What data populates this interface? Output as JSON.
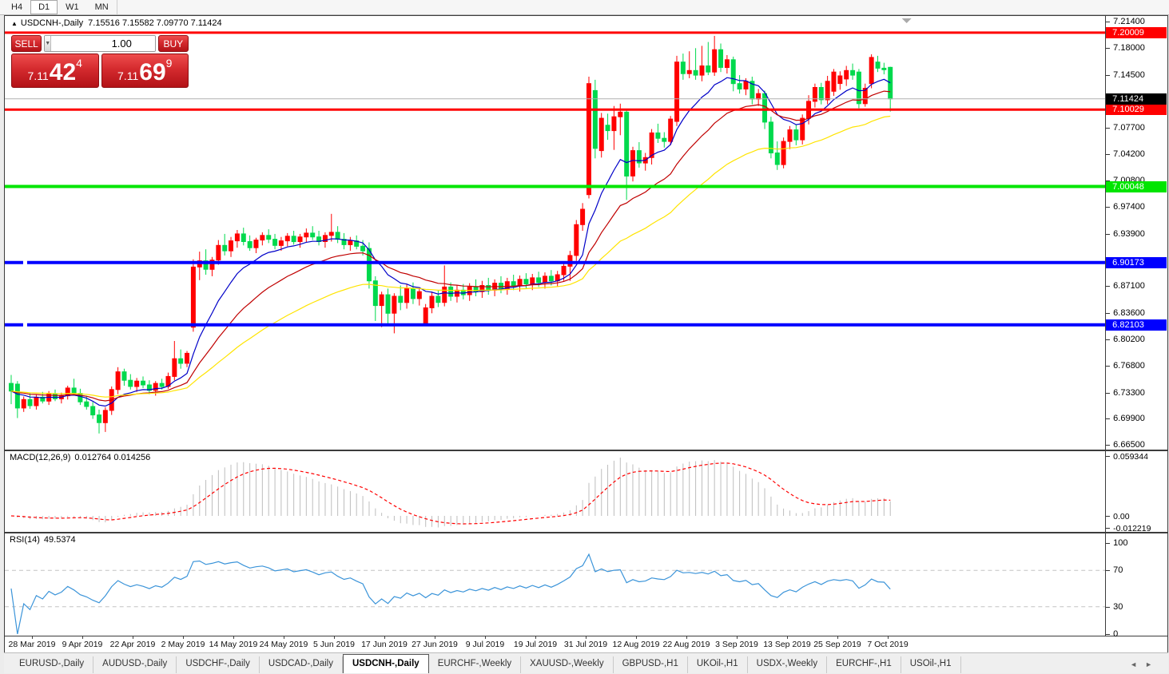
{
  "toolbar": {
    "timeframes": [
      "H4",
      "D1",
      "W1",
      "MN"
    ],
    "active": "D1"
  },
  "chart": {
    "title_marker": "▲",
    "symbol_label": "USDCNH-,Daily",
    "ohlc_text": "7.15516 7.15582 7.09770 7.11424"
  },
  "trade_panel": {
    "sell_label": "SELL",
    "buy_label": "BUY",
    "volume": "1.00",
    "spin_down_icon": "▼",
    "spin_up_icon": "▲",
    "sell_price": {
      "prefix": "7.11",
      "big": "42",
      "sup": "4"
    },
    "buy_price": {
      "prefix": "7.11",
      "big": "69",
      "sup": "9"
    }
  },
  "chart_data": {
    "type": "candlestick",
    "symbol": "USDCNH",
    "timeframe": "Daily",
    "last_ohlc": {
      "open": 7.15516,
      "high": 7.15582,
      "low": 7.0977,
      "close": 7.11424
    },
    "colors": {
      "bull": "#FF0000",
      "bear": "#00D94D",
      "macd_hist": "#BDBDBD",
      "macd_signal": "#FF0000",
      "rsi_line": "#3B94D9",
      "ma_fast": "#0000C8",
      "ma_mid": "#C00000",
      "ma_slow": "#FFE400",
      "current_price_line": "#B0B0B0"
    },
    "x_labels": [
      "28 Mar 2019",
      "9 Apr 2019",
      "22 Apr 2019",
      "2 May 2019",
      "14 May 2019",
      "24 May 2019",
      "5 Jun 2019",
      "17 Jun 2019",
      "27 Jun 2019",
      "9 Jul 2019",
      "19 Jul 2019",
      "31 Jul 2019",
      "12 Aug 2019",
      "22 Aug 2019",
      "3 Sep 2019",
      "13 Sep 2019",
      "25 Sep 2019",
      "7 Oct 2019"
    ],
    "y_ticks": [
      "7.21400",
      "7.18000",
      "7.14500",
      "7.11000",
      "7.07700",
      "7.04200",
      "7.00800",
      "6.97400",
      "6.93900",
      "6.90400",
      "6.87100",
      "6.83600",
      "6.80200",
      "6.76800",
      "6.73300",
      "6.69900",
      "6.66500"
    ],
    "hlines": [
      {
        "price": 7.20009,
        "label": "7.20009",
        "color": "#FF0000",
        "width": 3,
        "handle": false
      },
      {
        "price": 7.10029,
        "label": "7.10029",
        "color": "#FF0000",
        "width": 3,
        "handle": false
      },
      {
        "price": 7.00048,
        "label": "7.00048",
        "color": "#00E500",
        "width": 4,
        "handle": false
      },
      {
        "price": 6.90173,
        "label": "6.90173",
        "color": "#0000FF",
        "width": 4,
        "handle": true
      },
      {
        "price": 6.82103,
        "label": "6.82103",
        "color": "#0000FF",
        "width": 4,
        "handle": true
      }
    ],
    "current_price": {
      "value": 7.11424,
      "label": "7.11424"
    },
    "moving_averages": [
      {
        "period": 10
      },
      {
        "period": 22
      },
      {
        "period": 45
      }
    ],
    "candles": [
      [
        6.745,
        6.756,
        6.718,
        6.735
      ],
      [
        6.744,
        6.748,
        6.7,
        6.713
      ],
      [
        6.713,
        6.728,
        6.708,
        6.724
      ],
      [
        6.724,
        6.732,
        6.712,
        6.716
      ],
      [
        6.716,
        6.73,
        6.711,
        6.727
      ],
      [
        6.727,
        6.734,
        6.719,
        6.722
      ],
      [
        6.722,
        6.735,
        6.717,
        6.731
      ],
      [
        6.731,
        6.737,
        6.722,
        6.725
      ],
      [
        6.725,
        6.733,
        6.719,
        6.729
      ],
      [
        6.729,
        6.742,
        6.724,
        6.739
      ],
      [
        6.739,
        6.751,
        6.729,
        6.732
      ],
      [
        6.732,
        6.738,
        6.717,
        6.721
      ],
      [
        6.721,
        6.729,
        6.711,
        6.715
      ],
      [
        6.715,
        6.721,
        6.699,
        6.704
      ],
      [
        6.704,
        6.711,
        6.68,
        6.694
      ],
      [
        6.694,
        6.714,
        6.682,
        6.71
      ],
      [
        6.71,
        6.741,
        6.704,
        6.737
      ],
      [
        6.737,
        6.766,
        6.731,
        6.76
      ],
      [
        6.76,
        6.764,
        6.742,
        6.749
      ],
      [
        6.749,
        6.757,
        6.737,
        6.741
      ],
      [
        6.741,
        6.752,
        6.734,
        6.748
      ],
      [
        6.748,
        6.754,
        6.739,
        6.743
      ],
      [
        6.743,
        6.749,
        6.731,
        6.736
      ],
      [
        6.736,
        6.748,
        6.729,
        6.745
      ],
      [
        6.745,
        6.751,
        6.737,
        6.741
      ],
      [
        6.741,
        6.759,
        6.738,
        6.754
      ],
      [
        6.754,
        6.8,
        6.749,
        6.777
      ],
      [
        6.777,
        6.789,
        6.764,
        6.771
      ],
      [
        6.771,
        6.787,
        6.766,
        6.784
      ],
      [
        6.818,
        6.906,
        6.812,
        6.896
      ],
      [
        6.896,
        6.916,
        6.879,
        6.904
      ],
      [
        6.904,
        6.919,
        6.886,
        6.893
      ],
      [
        6.893,
        6.909,
        6.884,
        6.905
      ],
      [
        6.905,
        6.931,
        6.899,
        6.924
      ],
      [
        6.924,
        6.939,
        6.911,
        6.917
      ],
      [
        6.917,
        6.935,
        6.909,
        6.93
      ],
      [
        6.93,
        6.944,
        6.921,
        6.939
      ],
      [
        6.939,
        6.947,
        6.924,
        6.929
      ],
      [
        6.929,
        6.937,
        6.917,
        6.921
      ],
      [
        6.921,
        6.934,
        6.914,
        6.931
      ],
      [
        6.931,
        6.941,
        6.924,
        6.937
      ],
      [
        6.937,
        6.945,
        6.927,
        6.932
      ],
      [
        6.932,
        6.939,
        6.919,
        6.924
      ],
      [
        6.924,
        6.935,
        6.917,
        6.93
      ],
      [
        6.93,
        6.94,
        6.923,
        6.936
      ],
      [
        6.936,
        6.943,
        6.925,
        6.929
      ],
      [
        6.929,
        6.939,
        6.921,
        6.935
      ],
      [
        6.935,
        6.946,
        6.928,
        6.94
      ],
      [
        6.94,
        6.949,
        6.931,
        6.935
      ],
      [
        6.935,
        6.943,
        6.924,
        6.929
      ],
      [
        6.929,
        6.941,
        6.921,
        6.937
      ],
      [
        6.937,
        6.965,
        6.929,
        6.941
      ],
      [
        6.941,
        6.949,
        6.927,
        6.932
      ],
      [
        6.932,
        6.94,
        6.919,
        6.925
      ],
      [
        6.925,
        6.935,
        6.917,
        6.93
      ],
      [
        6.93,
        6.937,
        6.919,
        6.923
      ],
      [
        6.923,
        6.931,
        6.911,
        6.917
      ],
      [
        6.92,
        6.928,
        6.868,
        6.878
      ],
      [
        6.878,
        6.884,
        6.826,
        6.846
      ],
      [
        6.846,
        6.864,
        6.818,
        6.86
      ],
      [
        6.86,
        6.868,
        6.822,
        6.836
      ],
      [
        6.836,
        6.862,
        6.81,
        6.858
      ],
      [
        6.858,
        6.872,
        6.84,
        6.85
      ],
      [
        6.85,
        6.874,
        6.842,
        6.868
      ],
      [
        6.868,
        6.876,
        6.848,
        6.855
      ],
      [
        6.855,
        6.87,
        6.846,
        6.864
      ],
      [
        6.8215,
        6.848,
        6.821,
        6.843
      ],
      [
        6.843,
        6.864,
        6.836,
        6.858
      ],
      [
        6.858,
        6.866,
        6.844,
        6.85
      ],
      [
        6.85,
        6.898,
        6.845,
        6.87
      ],
      [
        6.87,
        6.876,
        6.852,
        6.858
      ],
      [
        6.858,
        6.872,
        6.85,
        6.866
      ],
      [
        6.866,
        6.874,
        6.854,
        6.86
      ],
      [
        6.86,
        6.875,
        6.852,
        6.87
      ],
      [
        6.87,
        6.88,
        6.858,
        6.864
      ],
      [
        6.864,
        6.878,
        6.856,
        6.872
      ],
      [
        6.872,
        6.882,
        6.86,
        6.866
      ],
      [
        6.866,
        6.88,
        6.858,
        6.875
      ],
      [
        6.875,
        6.884,
        6.862,
        6.868
      ],
      [
        6.868,
        6.882,
        6.86,
        6.877
      ],
      [
        6.877,
        6.886,
        6.866,
        6.872
      ],
      [
        6.872,
        6.885,
        6.864,
        6.88
      ],
      [
        6.88,
        6.888,
        6.868,
        6.874
      ],
      [
        6.874,
        6.887,
        6.866,
        6.882
      ],
      [
        6.882,
        6.89,
        6.87,
        6.876
      ],
      [
        6.876,
        6.889,
        6.868,
        6.884
      ],
      [
        6.884,
        6.892,
        6.872,
        6.878
      ],
      [
        6.878,
        6.891,
        6.87,
        6.886
      ],
      [
        6.886,
        6.901,
        6.878,
        6.897
      ],
      [
        6.897,
        6.917,
        6.878,
        6.911
      ],
      [
        6.911,
        6.957,
        6.904,
        6.951
      ],
      [
        6.951,
        6.979,
        6.943,
        6.971
      ],
      [
        6.99,
        7.143,
        6.985,
        7.134
      ],
      [
        7.125,
        7.139,
        7.037,
        7.05
      ],
      [
        7.047,
        7.096,
        7.038,
        7.089
      ],
      [
        7.08,
        7.095,
        7.061,
        7.073
      ],
      [
        7.073,
        7.105,
        7.048,
        7.091
      ],
      [
        7.091,
        7.108,
        7.067,
        7.097
      ],
      [
        7.097,
        7.1,
        6.983,
        7.014
      ],
      [
        7.014,
        7.052,
        7.007,
        7.047
      ],
      [
        7.047,
        7.058,
        7.025,
        7.031
      ],
      [
        7.031,
        7.044,
        7.021,
        7.038
      ],
      [
        7.038,
        7.075,
        7.029,
        7.07
      ],
      [
        7.07,
        7.082,
        7.057,
        7.063
      ],
      [
        7.063,
        7.071,
        7.051,
        7.059
      ],
      [
        7.059,
        7.092,
        7.054,
        7.088
      ],
      [
        7.085,
        7.17,
        7.079,
        7.162
      ],
      [
        7.162,
        7.173,
        7.139,
        7.147
      ],
      [
        7.147,
        7.176,
        7.141,
        7.151
      ],
      [
        7.151,
        7.18,
        7.139,
        7.145
      ],
      [
        7.145,
        7.183,
        7.137,
        7.157
      ],
      [
        7.157,
        7.188,
        7.145,
        7.149
      ],
      [
        7.149,
        7.196,
        7.144,
        7.178
      ],
      [
        7.178,
        7.186,
        7.149,
        7.155
      ],
      [
        7.155,
        7.171,
        7.147,
        7.165
      ],
      [
        7.165,
        7.169,
        7.124,
        7.134
      ],
      [
        7.134,
        7.145,
        7.121,
        7.127
      ],
      [
        7.127,
        7.141,
        7.119,
        7.137
      ],
      [
        7.137,
        7.143,
        7.107,
        7.114
      ],
      [
        7.114,
        7.127,
        7.105,
        7.121
      ],
      [
        7.121,
        7.125,
        7.075,
        7.084
      ],
      [
        7.084,
        7.091,
        7.037,
        7.044
      ],
      [
        7.044,
        7.059,
        7.022,
        7.029
      ],
      [
        7.029,
        7.064,
        7.024,
        7.059
      ],
      [
        7.059,
        7.079,
        7.049,
        7.074
      ],
      [
        7.074,
        7.081,
        7.054,
        7.061
      ],
      [
        7.061,
        7.094,
        7.055,
        7.089
      ],
      [
        7.089,
        7.119,
        7.081,
        7.111
      ],
      [
        7.111,
        7.134,
        7.103,
        7.129
      ],
      [
        7.129,
        7.135,
        7.107,
        7.113
      ],
      [
        7.113,
        7.144,
        7.107,
        7.137
      ],
      [
        7.124,
        7.153,
        7.118,
        7.149
      ],
      [
        7.134,
        7.15,
        7.126,
        7.144
      ],
      [
        7.14,
        7.157,
        7.131,
        7.151
      ],
      [
        7.151,
        7.16,
        7.139,
        7.145
      ],
      [
        7.149,
        7.153,
        7.102,
        7.108
      ],
      [
        7.108,
        7.134,
        7.104,
        7.128
      ],
      [
        7.134,
        7.172,
        7.128,
        7.168
      ],
      [
        7.162,
        7.17,
        7.149,
        7.154
      ],
      [
        7.154,
        7.161,
        7.146,
        7.152
      ],
      [
        7.15516,
        7.15582,
        7.0977,
        7.11424
      ]
    ],
    "indicators": {
      "macd": {
        "label": "MACD(12,26,9)",
        "values_text": "0.012764 0.014256",
        "fast": 12,
        "slow": 26,
        "signal": 9,
        "axis_labels": [
          "0.059344",
          "0.00",
          "-0.012219"
        ]
      },
      "rsi": {
        "label": "RSI(14)",
        "value_text": "49.5374",
        "period": 14,
        "axis_labels": [
          "100",
          "70",
          "30",
          "0"
        ],
        "levels": [
          70,
          30
        ]
      }
    }
  },
  "tabs": {
    "items": [
      "EURUSD-,Daily",
      "AUDUSD-,Daily",
      "USDCHF-,Daily",
      "USDCAD-,Daily",
      "USDCNH-,Daily",
      "EURCHF-,Weekly",
      "XAUUSD-,Weekly",
      "GBPUSD-,H1",
      "UKOil-,H1",
      "USDX-,Weekly",
      "EURCHF-,H1",
      "USOil-,H1"
    ],
    "active_index": 4,
    "nav_left": "◄",
    "nav_right": "►"
  }
}
